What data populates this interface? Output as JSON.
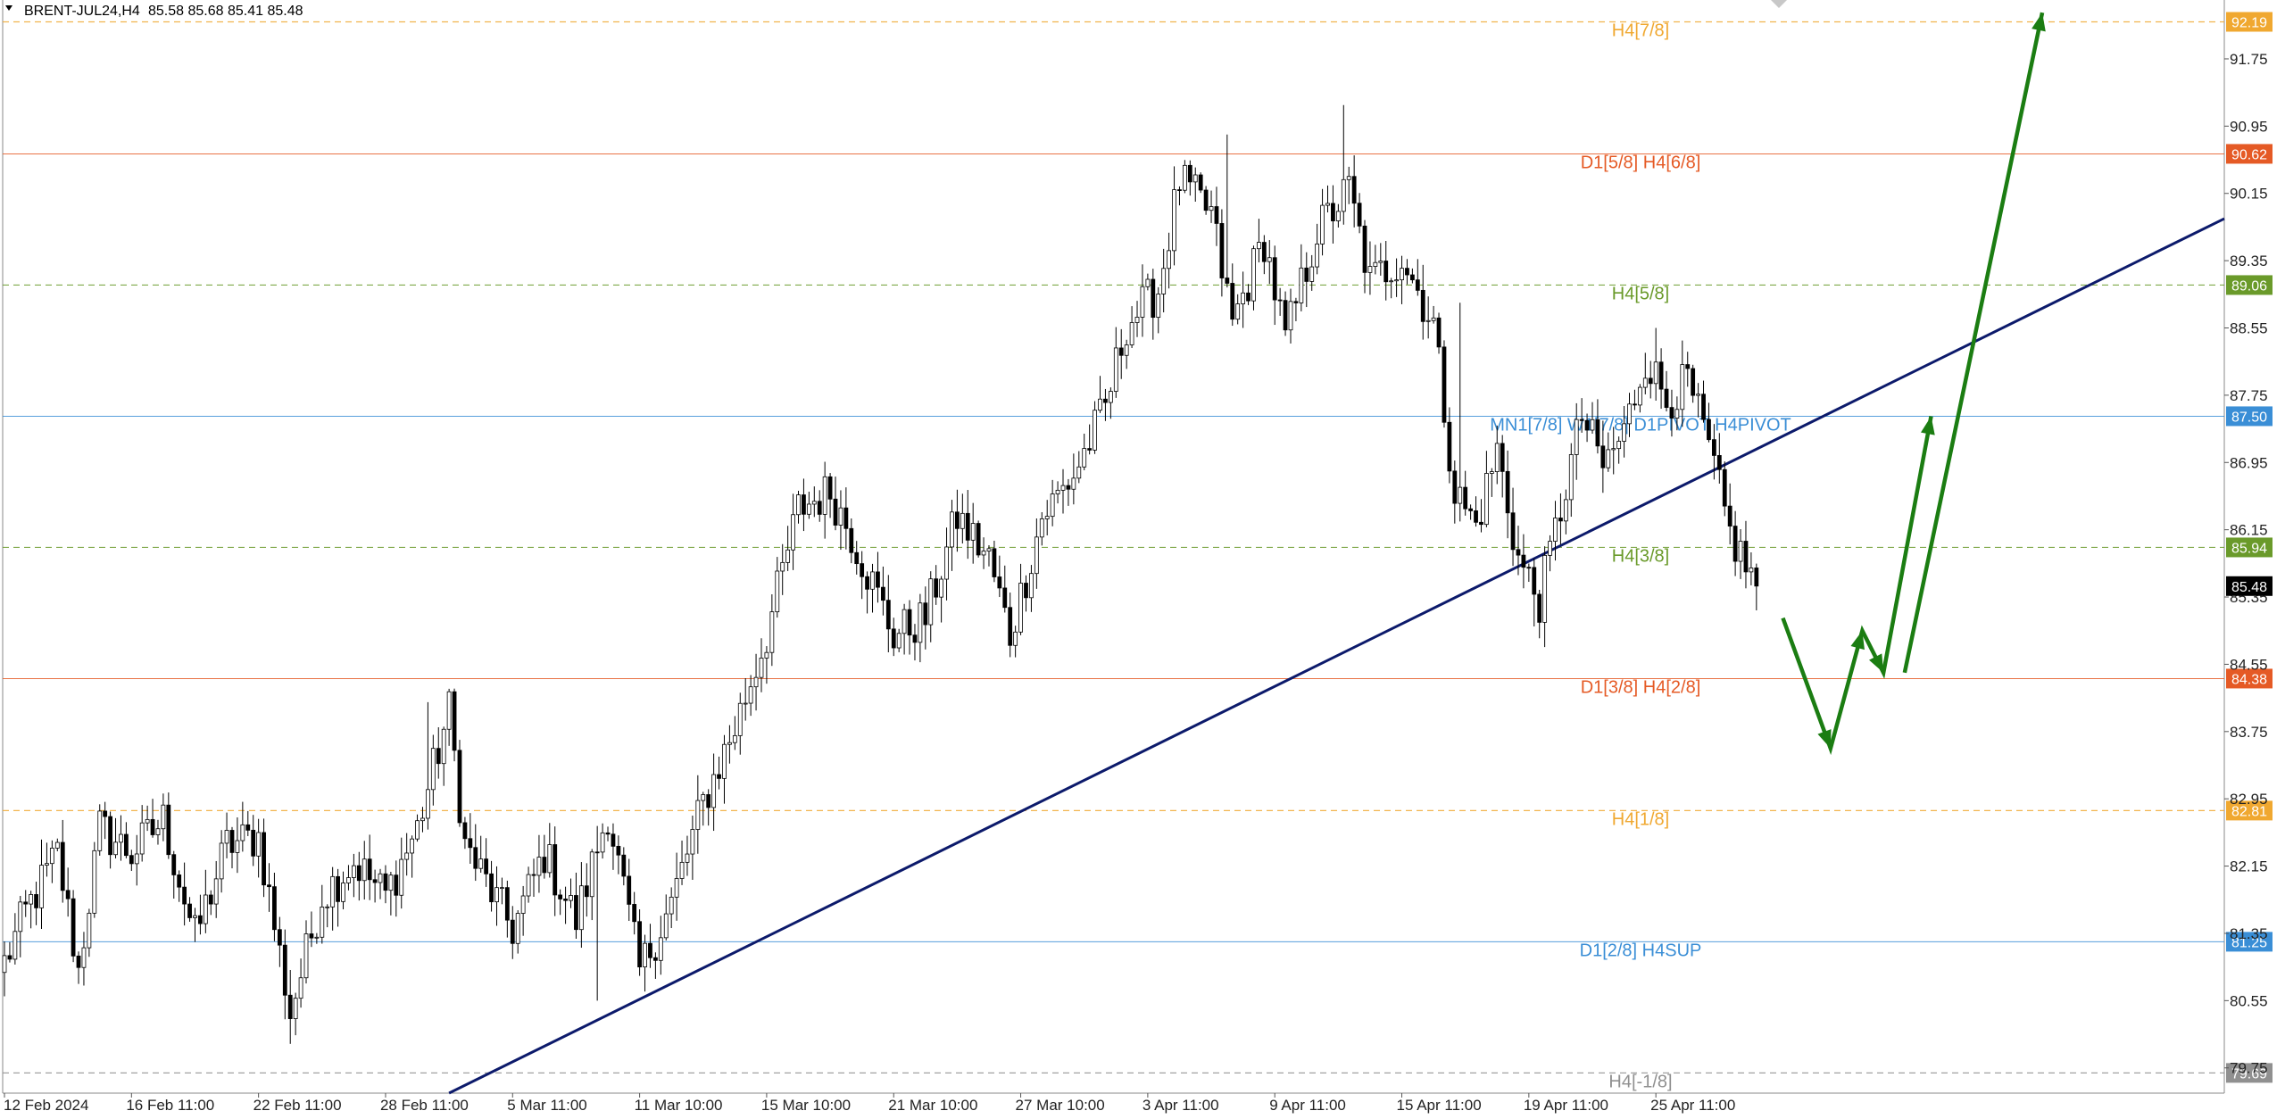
{
  "header": {
    "symbol_timeframe": "BRENT-JUL24,H4",
    "ohlc": "85.58 85.68 85.41 85.48"
  },
  "chart_data": {
    "type": "candlestick",
    "symbol": "BRENT-JUL24",
    "timeframe": "H4",
    "ylim": [
      79.45,
      92.45
    ],
    "y_ticks": [
      "91.75",
      "90.95",
      "90.15",
      "89.35",
      "88.55",
      "87.75",
      "86.95",
      "86.15",
      "85.35",
      "84.55",
      "83.75",
      "82.95",
      "82.15",
      "81.35",
      "80.55",
      "79.75"
    ],
    "x_labels": [
      {
        "label": "12 Feb 2024",
        "bar": 0
      },
      {
        "label": "16 Feb 11:00",
        "bar": 24
      },
      {
        "label": "22 Feb 11:00",
        "bar": 48
      },
      {
        "label": "28 Feb 11:00",
        "bar": 72
      },
      {
        "label": "5 Mar 11:00",
        "bar": 96
      },
      {
        "label": "11 Mar 10:00",
        "bar": 120
      },
      {
        "label": "15 Mar 10:00",
        "bar": 144
      },
      {
        "label": "21 Mar 10:00",
        "bar": 168
      },
      {
        "label": "27 Mar 10:00",
        "bar": 192
      },
      {
        "label": "3 Apr 11:00",
        "bar": 216
      },
      {
        "label": "9 Apr 11:00",
        "bar": 240
      },
      {
        "label": "15 Apr 11:00",
        "bar": 264
      },
      {
        "label": "19 Apr 11:00",
        "bar": 288
      },
      {
        "label": "25 Apr 11:00",
        "bar": 312
      }
    ],
    "total_bars": 332,
    "anchors": [
      {
        "bar": 0,
        "price": 81.0
      },
      {
        "bar": 4,
        "price": 81.6
      },
      {
        "bar": 10,
        "price": 82.3
      },
      {
        "bar": 14,
        "price": 80.9
      },
      {
        "bar": 18,
        "price": 82.6
      },
      {
        "bar": 24,
        "price": 82.3
      },
      {
        "bar": 30,
        "price": 82.7
      },
      {
        "bar": 36,
        "price": 81.3
      },
      {
        "bar": 42,
        "price": 82.4
      },
      {
        "bar": 48,
        "price": 82.5
      },
      {
        "bar": 54,
        "price": 80.4
      },
      {
        "bar": 60,
        "price": 81.8
      },
      {
        "bar": 66,
        "price": 82.2
      },
      {
        "bar": 72,
        "price": 81.8
      },
      {
        "bar": 78,
        "price": 82.6
      },
      {
        "bar": 84,
        "price": 84.0
      },
      {
        "bar": 87,
        "price": 82.4
      },
      {
        "bar": 96,
        "price": 81.4
      },
      {
        "bar": 102,
        "price": 82.3
      },
      {
        "bar": 108,
        "price": 81.5
      },
      {
        "bar": 114,
        "price": 82.8
      },
      {
        "bar": 120,
        "price": 80.9
      },
      {
        "bar": 126,
        "price": 81.7
      },
      {
        "bar": 132,
        "price": 82.9
      },
      {
        "bar": 138,
        "price": 83.8
      },
      {
        "bar": 144,
        "price": 84.9
      },
      {
        "bar": 150,
        "price": 86.4
      },
      {
        "bar": 156,
        "price": 86.6
      },
      {
        "bar": 160,
        "price": 86.1
      },
      {
        "bar": 164,
        "price": 85.5
      },
      {
        "bar": 168,
        "price": 84.9
      },
      {
        "bar": 174,
        "price": 85.1
      },
      {
        "bar": 180,
        "price": 86.3
      },
      {
        "bar": 186,
        "price": 85.8
      },
      {
        "bar": 190,
        "price": 84.9
      },
      {
        "bar": 196,
        "price": 86.3
      },
      {
        "bar": 202,
        "price": 86.8
      },
      {
        "bar": 208,
        "price": 87.6
      },
      {
        "bar": 212,
        "price": 88.6
      },
      {
        "bar": 218,
        "price": 89.0
      },
      {
        "bar": 222,
        "price": 90.3
      },
      {
        "bar": 228,
        "price": 89.9
      },
      {
        "bar": 232,
        "price": 88.6
      },
      {
        "bar": 238,
        "price": 89.6
      },
      {
        "bar": 242,
        "price": 88.4
      },
      {
        "bar": 248,
        "price": 89.7
      },
      {
        "bar": 254,
        "price": 90.2
      },
      {
        "bar": 258,
        "price": 89.1
      },
      {
        "bar": 264,
        "price": 89.4
      },
      {
        "bar": 270,
        "price": 88.6
      },
      {
        "bar": 274,
        "price": 86.6
      },
      {
        "bar": 278,
        "price": 86.2
      },
      {
        "bar": 282,
        "price": 87.1
      },
      {
        "bar": 286,
        "price": 85.8
      },
      {
        "bar": 290,
        "price": 85.3
      },
      {
        "bar": 294,
        "price": 86.4
      },
      {
        "bar": 298,
        "price": 87.5
      },
      {
        "bar": 302,
        "price": 86.9
      },
      {
        "bar": 306,
        "price": 87.3
      },
      {
        "bar": 310,
        "price": 88.2
      },
      {
        "bar": 314,
        "price": 87.7
      },
      {
        "bar": 318,
        "price": 87.9
      },
      {
        "bar": 322,
        "price": 87.1
      },
      {
        "bar": 326,
        "price": 86.1
      },
      {
        "bar": 331,
        "price": 85.48
      }
    ],
    "spikes": [
      {
        "bar": 80,
        "price": 84.1
      },
      {
        "bar": 231,
        "price": 90.85
      },
      {
        "bar": 253,
        "price": 91.2
      },
      {
        "bar": 275,
        "price": 88.85
      },
      {
        "bar": 268,
        "price": 89.3
      },
      {
        "bar": 312,
        "price": 88.55
      },
      {
        "bar": 289,
        "price": 85.0
      },
      {
        "bar": 112,
        "price": 80.55
      }
    ],
    "levels": [
      {
        "price": 92.19,
        "label": "H4[7/8]",
        "price_label": "92.19",
        "color": "#f0a830",
        "style": "dashed"
      },
      {
        "price": 90.62,
        "label": "D1[5/8] H4[6/8]",
        "price_label": "90.62",
        "color": "#e55a25",
        "style": "solid"
      },
      {
        "price": 89.06,
        "label": "H4[5/8]",
        "price_label": "89.06",
        "color": "#6a9a2a",
        "style": "dashed"
      },
      {
        "price": 87.5,
        "label": "MN1[7/8] W1[7/8] D1PIVOT H4PIVOT",
        "price_label": "87.50",
        "color": "#3a8ed6",
        "style": "solid"
      },
      {
        "price": 85.94,
        "label": "H4[3/8]",
        "price_label": "85.94",
        "color": "#6a9a2a",
        "style": "dashed"
      },
      {
        "price": 84.38,
        "label": "D1[3/8] H4[2/8]",
        "price_label": "84.38",
        "color": "#e55a25",
        "style": "solid"
      },
      {
        "price": 82.81,
        "label": "H4[1/8]",
        "price_label": "82.81",
        "color": "#f0a830",
        "style": "dashed"
      },
      {
        "price": 81.25,
        "label": "D1[2/8] H4SUP",
        "price_label": "81.25",
        "color": "#3a8ed6",
        "style": "solid"
      },
      {
        "price": 79.69,
        "label": "H4[-1/8]",
        "price_label": "79.69",
        "color": "#909090",
        "style": "dashed"
      }
    ],
    "current_price": {
      "price": 85.48,
      "label": "85.48"
    },
    "trendline": {
      "from": {
        "bar": 84,
        "price": 79.45
      },
      "to": {
        "bar": 392,
        "price": 89.0
      }
    },
    "forecast_path": [
      {
        "bar": 336,
        "price": 85.1
      },
      {
        "bar": 345,
        "price": 83.55
      },
      {
        "bar": 351,
        "price": 84.95
      },
      {
        "bar": 355,
        "price": 84.45
      },
      {
        "bar": 364,
        "price": 87.5
      }
    ],
    "forecast_path2": [
      {
        "bar": 359,
        "price": 84.45
      },
      {
        "bar": 385,
        "price": 92.3
      }
    ],
    "colors": {
      "trendline": "#0c1a6b",
      "forecast": "#1b7d12",
      "candle": "#000000",
      "current": "#000000"
    }
  }
}
